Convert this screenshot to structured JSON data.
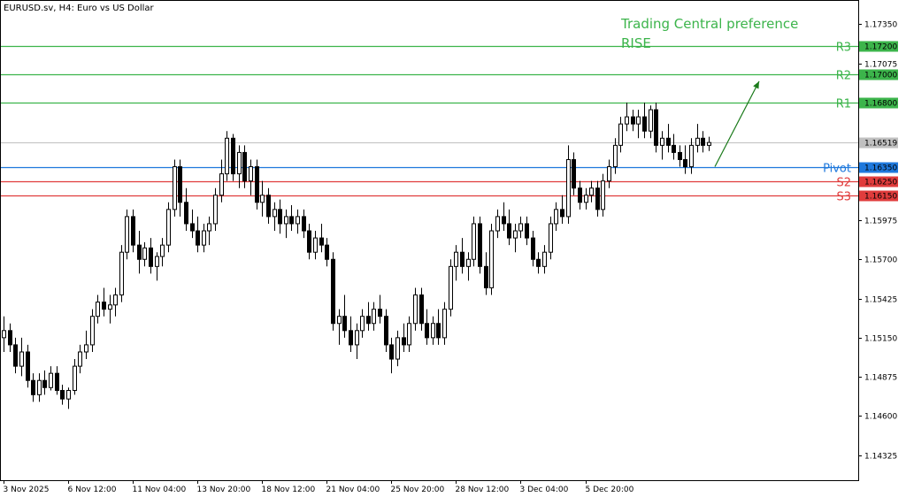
{
  "chart_data": {
    "type": "candlestick",
    "title": "EURUSD.sv, H4:  Euro vs US Dollar",
    "y_axis": {
      "position": "right",
      "range": [
        1.1415,
        1.1752
      ],
      "ticks": [
        "1.17350",
        "1.17075",
        "1.16800",
        "1.16525",
        "1.16250",
        "1.15975",
        "1.15700",
        "1.15425",
        "1.15150",
        "1.14875",
        "1.14600",
        "1.14325"
      ]
    },
    "x_axis": {
      "ticks": [
        "3 Nov 2025",
        "6 Nov 12:00",
        "11 Nov 04:00",
        "13 Nov 20:00",
        "18 Nov 12:00",
        "21 Nov 04:00",
        "25 Nov 20:00",
        "28 Nov 12:00",
        "3 Dec 04:00",
        "5 Dec 20:00"
      ]
    },
    "levels": [
      {
        "name": "R3",
        "price": 1.172,
        "label": "1.17200",
        "color": "#3cb44b"
      },
      {
        "name": "R2",
        "price": 1.17,
        "label": "1.17000",
        "color": "#3cb44b"
      },
      {
        "name": "R1",
        "price": 1.168,
        "label": "1.16800",
        "color": "#3cb44b"
      },
      {
        "name": "Pivot",
        "price": 1.1635,
        "label": "1.16350",
        "color": "#1e78dc"
      },
      {
        "name": "S2",
        "price": 1.1625,
        "label": "1.16250",
        "color": "#e03c3c"
      },
      {
        "name": "S3",
        "price": 1.1615,
        "label": "1.16150",
        "color": "#e03c3c"
      }
    ],
    "current_price": {
      "value": 1.16519,
      "label": "1.16519",
      "color": "#c0c0c0"
    },
    "annotation": {
      "lines": [
        "Trading Central preference",
        "RISE"
      ],
      "color": "#3cb44b"
    },
    "forecast_arrow": {
      "from_price": 1.1635,
      "to_price": 1.1695,
      "color": "#1a7a1a"
    },
    "candles": [
      [
        1.1515,
        1.153,
        1.1505,
        1.152
      ],
      [
        1.152,
        1.1525,
        1.1505,
        1.151
      ],
      [
        1.151,
        1.1515,
        1.149,
        1.1495
      ],
      [
        1.1495,
        1.1515,
        1.1488,
        1.1505
      ],
      [
        1.1505,
        1.151,
        1.148,
        1.1485
      ],
      [
        1.1485,
        1.149,
        1.147,
        1.1475
      ],
      [
        1.1475,
        1.149,
        1.147,
        1.1485
      ],
      [
        1.1485,
        1.1492,
        1.1475,
        1.148
      ],
      [
        1.148,
        1.1495,
        1.1478,
        1.149
      ],
      [
        1.149,
        1.1495,
        1.1475,
        1.1478
      ],
      [
        1.1478,
        1.1482,
        1.1468,
        1.1472
      ],
      [
        1.1472,
        1.148,
        1.1465,
        1.1478
      ],
      [
        1.1478,
        1.15,
        1.1475,
        1.1495
      ],
      [
        1.1495,
        1.151,
        1.149,
        1.1505
      ],
      [
        1.1505,
        1.152,
        1.15,
        1.151
      ],
      [
        1.151,
        1.1535,
        1.1505,
        1.153
      ],
      [
        1.153,
        1.1545,
        1.1525,
        1.154
      ],
      [
        1.154,
        1.155,
        1.153,
        1.1535
      ],
      [
        1.1535,
        1.1545,
        1.1525,
        1.1538
      ],
      [
        1.1538,
        1.155,
        1.153,
        1.1545
      ],
      [
        1.1545,
        1.158,
        1.154,
        1.1575
      ],
      [
        1.1575,
        1.1605,
        1.157,
        1.16
      ],
      [
        1.16,
        1.1605,
        1.1575,
        1.158
      ],
      [
        1.158,
        1.159,
        1.156,
        1.157
      ],
      [
        1.157,
        1.1582,
        1.1565,
        1.1578
      ],
      [
        1.1578,
        1.1585,
        1.156,
        1.1565
      ],
      [
        1.1565,
        1.1575,
        1.1555,
        1.1572
      ],
      [
        1.1572,
        1.1585,
        1.1565,
        1.158
      ],
      [
        1.158,
        1.161,
        1.1575,
        1.1605
      ],
      [
        1.1605,
        1.164,
        1.16,
        1.1635
      ],
      [
        1.1635,
        1.164,
        1.16,
        1.161
      ],
      [
        1.161,
        1.162,
        1.159,
        1.1595
      ],
      [
        1.1595,
        1.1605,
        1.1585,
        1.159
      ],
      [
        1.159,
        1.16,
        1.1575,
        1.158
      ],
      [
        1.158,
        1.1595,
        1.1575,
        1.159
      ],
      [
        1.159,
        1.16,
        1.158,
        1.1595
      ],
      [
        1.1595,
        1.162,
        1.159,
        1.1615
      ],
      [
        1.1615,
        1.164,
        1.161,
        1.163
      ],
      [
        1.163,
        1.166,
        1.1625,
        1.1655
      ],
      [
        1.1655,
        1.1658,
        1.1625,
        1.163
      ],
      [
        1.163,
        1.165,
        1.162,
        1.1645
      ],
      [
        1.1645,
        1.165,
        1.162,
        1.1625
      ],
      [
        1.1625,
        1.164,
        1.1615,
        1.1635
      ],
      [
        1.1635,
        1.164,
        1.1605,
        1.161
      ],
      [
        1.161,
        1.1625,
        1.16,
        1.1615
      ],
      [
        1.1615,
        1.162,
        1.1595,
        1.16
      ],
      [
        1.16,
        1.161,
        1.159,
        1.1605
      ],
      [
        1.1605,
        1.1612,
        1.1588,
        1.1595
      ],
      [
        1.1595,
        1.1605,
        1.1585,
        1.16
      ],
      [
        1.16,
        1.1608,
        1.159,
        1.1595
      ],
      [
        1.1595,
        1.1605,
        1.1588,
        1.16
      ],
      [
        1.16,
        1.1605,
        1.1585,
        1.159
      ],
      [
        1.159,
        1.1595,
        1.157,
        1.1575
      ],
      [
        1.1575,
        1.159,
        1.157,
        1.1585
      ],
      [
        1.1585,
        1.1595,
        1.1575,
        1.158
      ],
      [
        1.158,
        1.1585,
        1.1565,
        1.157
      ],
      [
        1.157,
        1.1575,
        1.152,
        1.1525
      ],
      [
        1.1525,
        1.1535,
        1.151,
        1.153
      ],
      [
        1.153,
        1.1545,
        1.1515,
        1.152
      ],
      [
        1.152,
        1.153,
        1.1505,
        1.151
      ],
      [
        1.151,
        1.1525,
        1.15,
        1.152
      ],
      [
        1.152,
        1.1535,
        1.1515,
        1.153
      ],
      [
        1.153,
        1.154,
        1.152,
        1.1525
      ],
      [
        1.1525,
        1.154,
        1.152,
        1.1535
      ],
      [
        1.1535,
        1.1545,
        1.1525,
        1.153
      ],
      [
        1.153,
        1.1535,
        1.1505,
        1.151
      ],
      [
        1.151,
        1.1515,
        1.149,
        1.15
      ],
      [
        1.15,
        1.152,
        1.1495,
        1.1515
      ],
      [
        1.1515,
        1.1525,
        1.1505,
        1.151
      ],
      [
        1.151,
        1.153,
        1.1505,
        1.1525
      ],
      [
        1.1525,
        1.155,
        1.152,
        1.1545
      ],
      [
        1.1545,
        1.155,
        1.152,
        1.1525
      ],
      [
        1.1525,
        1.1535,
        1.151,
        1.1515
      ],
      [
        1.1515,
        1.153,
        1.151,
        1.1525
      ],
      [
        1.1525,
        1.1535,
        1.151,
        1.1515
      ],
      [
        1.1515,
        1.154,
        1.151,
        1.1535
      ],
      [
        1.1535,
        1.157,
        1.153,
        1.1565
      ],
      [
        1.1565,
        1.158,
        1.1555,
        1.1575
      ],
      [
        1.1575,
        1.1585,
        1.156,
        1.1565
      ],
      [
        1.1565,
        1.1575,
        1.1555,
        1.157
      ],
      [
        1.157,
        1.16,
        1.1565,
        1.1595
      ],
      [
        1.1595,
        1.16,
        1.156,
        1.1565
      ],
      [
        1.1565,
        1.1575,
        1.1545,
        1.155
      ],
      [
        1.155,
        1.1595,
        1.1545,
        1.159
      ],
      [
        1.159,
        1.1605,
        1.1585,
        1.16
      ],
      [
        1.16,
        1.161,
        1.159,
        1.1595
      ],
      [
        1.1595,
        1.1605,
        1.158,
        1.1585
      ],
      [
        1.1585,
        1.1595,
        1.1575,
        1.159
      ],
      [
        1.159,
        1.16,
        1.1585,
        1.1595
      ],
      [
        1.1595,
        1.16,
        1.158,
        1.1585
      ],
      [
        1.1585,
        1.159,
        1.1565,
        1.157
      ],
      [
        1.157,
        1.1575,
        1.156,
        1.1565
      ],
      [
        1.1565,
        1.158,
        1.156,
        1.1575
      ],
      [
        1.1575,
        1.16,
        1.157,
        1.1595
      ],
      [
        1.1595,
        1.161,
        1.159,
        1.1605
      ],
      [
        1.1605,
        1.1615,
        1.1595,
        1.16
      ],
      [
        1.16,
        1.165,
        1.1595,
        1.164
      ],
      [
        1.164,
        1.1645,
        1.1615,
        1.162
      ],
      [
        1.162,
        1.1625,
        1.1605,
        1.161
      ],
      [
        1.161,
        1.162,
        1.1605,
        1.1615
      ],
      [
        1.1615,
        1.1625,
        1.161,
        1.162
      ],
      [
        1.162,
        1.1625,
        1.16,
        1.1605
      ],
      [
        1.1605,
        1.163,
        1.16,
        1.1625
      ],
      [
        1.1625,
        1.164,
        1.162,
        1.1635
      ],
      [
        1.1635,
        1.1655,
        1.163,
        1.165
      ],
      [
        1.165,
        1.167,
        1.1645,
        1.1665
      ],
      [
        1.1665,
        1.168,
        1.166,
        1.167
      ],
      [
        1.167,
        1.1675,
        1.166,
        1.1665
      ],
      [
        1.1665,
        1.1675,
        1.1655,
        1.167
      ],
      [
        1.167,
        1.168,
        1.1655,
        1.166
      ],
      [
        1.166,
        1.1678,
        1.1655,
        1.1675
      ],
      [
        1.1675,
        1.168,
        1.1645,
        1.165
      ],
      [
        1.165,
        1.166,
        1.164,
        1.1655
      ],
      [
        1.1655,
        1.1665,
        1.1645,
        1.165
      ],
      [
        1.165,
        1.1658,
        1.164,
        1.1645
      ],
      [
        1.1645,
        1.165,
        1.1635,
        1.164
      ],
      [
        1.164,
        1.165,
        1.163,
        1.1635
      ],
      [
        1.1635,
        1.1655,
        1.163,
        1.165
      ],
      [
        1.165,
        1.1665,
        1.1645,
        1.1655
      ],
      [
        1.1655,
        1.166,
        1.1645,
        1.165
      ],
      [
        1.165,
        1.1656,
        1.1646,
        1.1652
      ]
    ]
  }
}
